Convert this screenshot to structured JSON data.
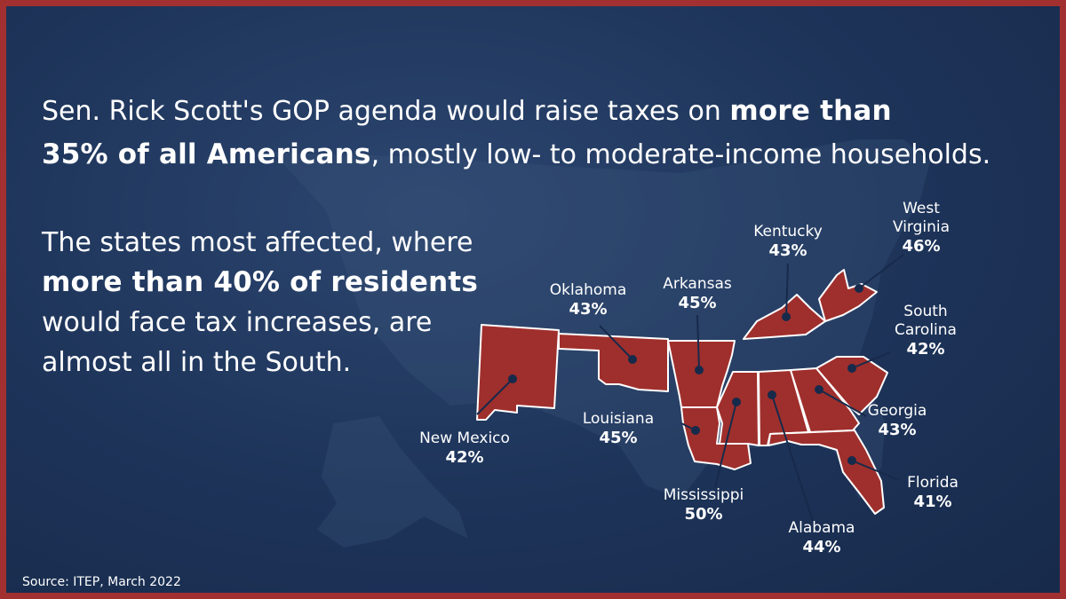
{
  "headline": {
    "part1": "Sen. Rick Scott's GOP agenda would raise taxes on ",
    "bold1": "more than",
    "bold2": "35% of all Americans",
    "part2": ", mostly low- to moderate-income households."
  },
  "subtext": {
    "part1": "The states most affected, where",
    "bold": "more than 40% of residents",
    "part2": "would face tax increases, are almost all in the South."
  },
  "source": "Source: ITEP, March 2022",
  "colors": {
    "background": "#1d3358",
    "border": "#a33030",
    "state_fill": "#9f2f2c",
    "state_stroke": "#ffffff",
    "text": "#ffffff"
  },
  "states": [
    {
      "id": "new-mexico",
      "name": "New Mexico",
      "value": "42%"
    },
    {
      "id": "oklahoma",
      "name": "Oklahoma",
      "value": "43%"
    },
    {
      "id": "arkansas",
      "name": "Arkansas",
      "value": "45%"
    },
    {
      "id": "louisiana",
      "name": "Louisiana",
      "value": "45%"
    },
    {
      "id": "mississippi",
      "name": "Mississippi",
      "value": "50%"
    },
    {
      "id": "alabama",
      "name": "Alabama",
      "value": "44%"
    },
    {
      "id": "georgia",
      "name": "Georgia",
      "value": "43%"
    },
    {
      "id": "florida",
      "name": "Florida",
      "value": "41%"
    },
    {
      "id": "south-carolina",
      "name": "South Carolina",
      "value": "42%"
    },
    {
      "id": "kentucky",
      "name": "Kentucky",
      "value": "43%"
    },
    {
      "id": "west-virginia",
      "name": "West Virginia",
      "value": "46%"
    }
  ]
}
